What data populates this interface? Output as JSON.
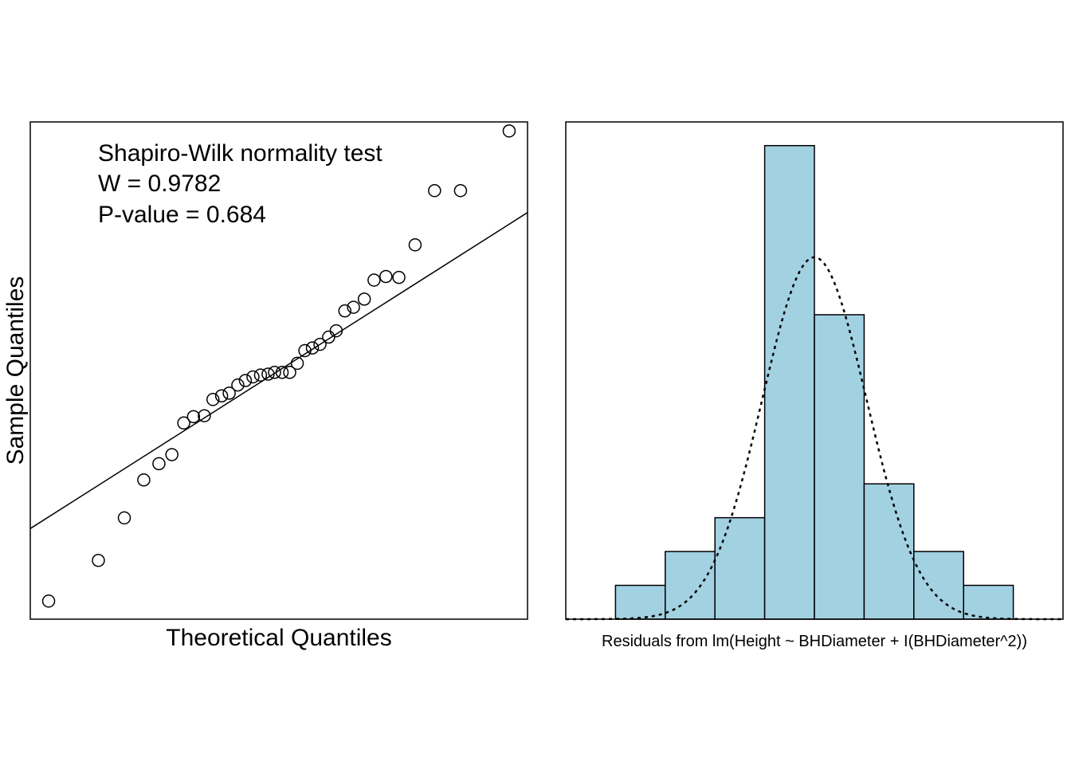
{
  "chart_data": [
    {
      "type": "scatter",
      "title": "",
      "xlabel": "Theoretical Quantiles",
      "ylabel": "Sample Quantiles",
      "annotation": {
        "line1": "Shapiro-Wilk normality test",
        "line2": "W = 0.9782",
        "line3": "P-value = 0.684"
      },
      "xlim": [
        -2.3,
        2.3
      ],
      "ylim": [
        -2.75,
        2.75
      ],
      "reference_line": {
        "intercept": 0.0,
        "slope": 0.76
      },
      "points": [
        {
          "x": -2.13,
          "y": -2.55
        },
        {
          "x": -1.67,
          "y": -2.1
        },
        {
          "x": -1.43,
          "y": -1.63
        },
        {
          "x": -1.25,
          "y": -1.21
        },
        {
          "x": -1.11,
          "y": -1.03
        },
        {
          "x": -0.99,
          "y": -0.93
        },
        {
          "x": -0.88,
          "y": -0.58
        },
        {
          "x": -0.79,
          "y": -0.51
        },
        {
          "x": -0.69,
          "y": -0.5
        },
        {
          "x": -0.61,
          "y": -0.32
        },
        {
          "x": -0.53,
          "y": -0.28
        },
        {
          "x": -0.46,
          "y": -0.25
        },
        {
          "x": -0.38,
          "y": -0.16
        },
        {
          "x": -0.31,
          "y": -0.11
        },
        {
          "x": -0.24,
          "y": -0.07
        },
        {
          "x": -0.17,
          "y": -0.05
        },
        {
          "x": -0.1,
          "y": -0.04
        },
        {
          "x": -0.04,
          "y": -0.02
        },
        {
          "x": 0.03,
          "y": -0.02
        },
        {
          "x": 0.1,
          "y": -0.02
        },
        {
          "x": 0.17,
          "y": 0.08
        },
        {
          "x": 0.24,
          "y": 0.22
        },
        {
          "x": 0.31,
          "y": 0.25
        },
        {
          "x": 0.38,
          "y": 0.29
        },
        {
          "x": 0.46,
          "y": 0.37
        },
        {
          "x": 0.53,
          "y": 0.44
        },
        {
          "x": 0.61,
          "y": 0.66
        },
        {
          "x": 0.69,
          "y": 0.7
        },
        {
          "x": 0.79,
          "y": 0.79
        },
        {
          "x": 0.88,
          "y": 1.0
        },
        {
          "x": 0.99,
          "y": 1.04
        },
        {
          "x": 1.11,
          "y": 1.03
        },
        {
          "x": 1.26,
          "y": 1.39
        },
        {
          "x": 1.44,
          "y": 1.99
        },
        {
          "x": 1.68,
          "y": 1.99
        },
        {
          "x": 2.13,
          "y": 2.65
        }
      ]
    },
    {
      "type": "bar",
      "subtype": "histogram",
      "title": "",
      "xlabel": "Residuals from lm(Height ~ BHDiameter + I(BHDiameter^2))",
      "ylabel": "",
      "bin_width": 1,
      "xlim": [
        -5,
        5
      ],
      "ylim": [
        0,
        14.7
      ],
      "bins": [
        {
          "start": -4,
          "end": -3,
          "count": 1
        },
        {
          "start": -3,
          "end": -2,
          "count": 2
        },
        {
          "start": -2,
          "end": -1,
          "count": 3
        },
        {
          "start": -1,
          "end": 0,
          "count": 14
        },
        {
          "start": 0,
          "end": 1,
          "count": 9
        },
        {
          "start": 1,
          "end": 2,
          "count": 4
        },
        {
          "start": 2,
          "end": 3,
          "count": 2
        },
        {
          "start": 3,
          "end": 4,
          "count": 1
        }
      ],
      "density_curve": {
        "style": "dotted",
        "mean": 0.0,
        "sd": 1.05,
        "peak_count": 10.7
      },
      "bar_fill": "#a2d1e2",
      "bar_stroke": "#000000"
    }
  ]
}
